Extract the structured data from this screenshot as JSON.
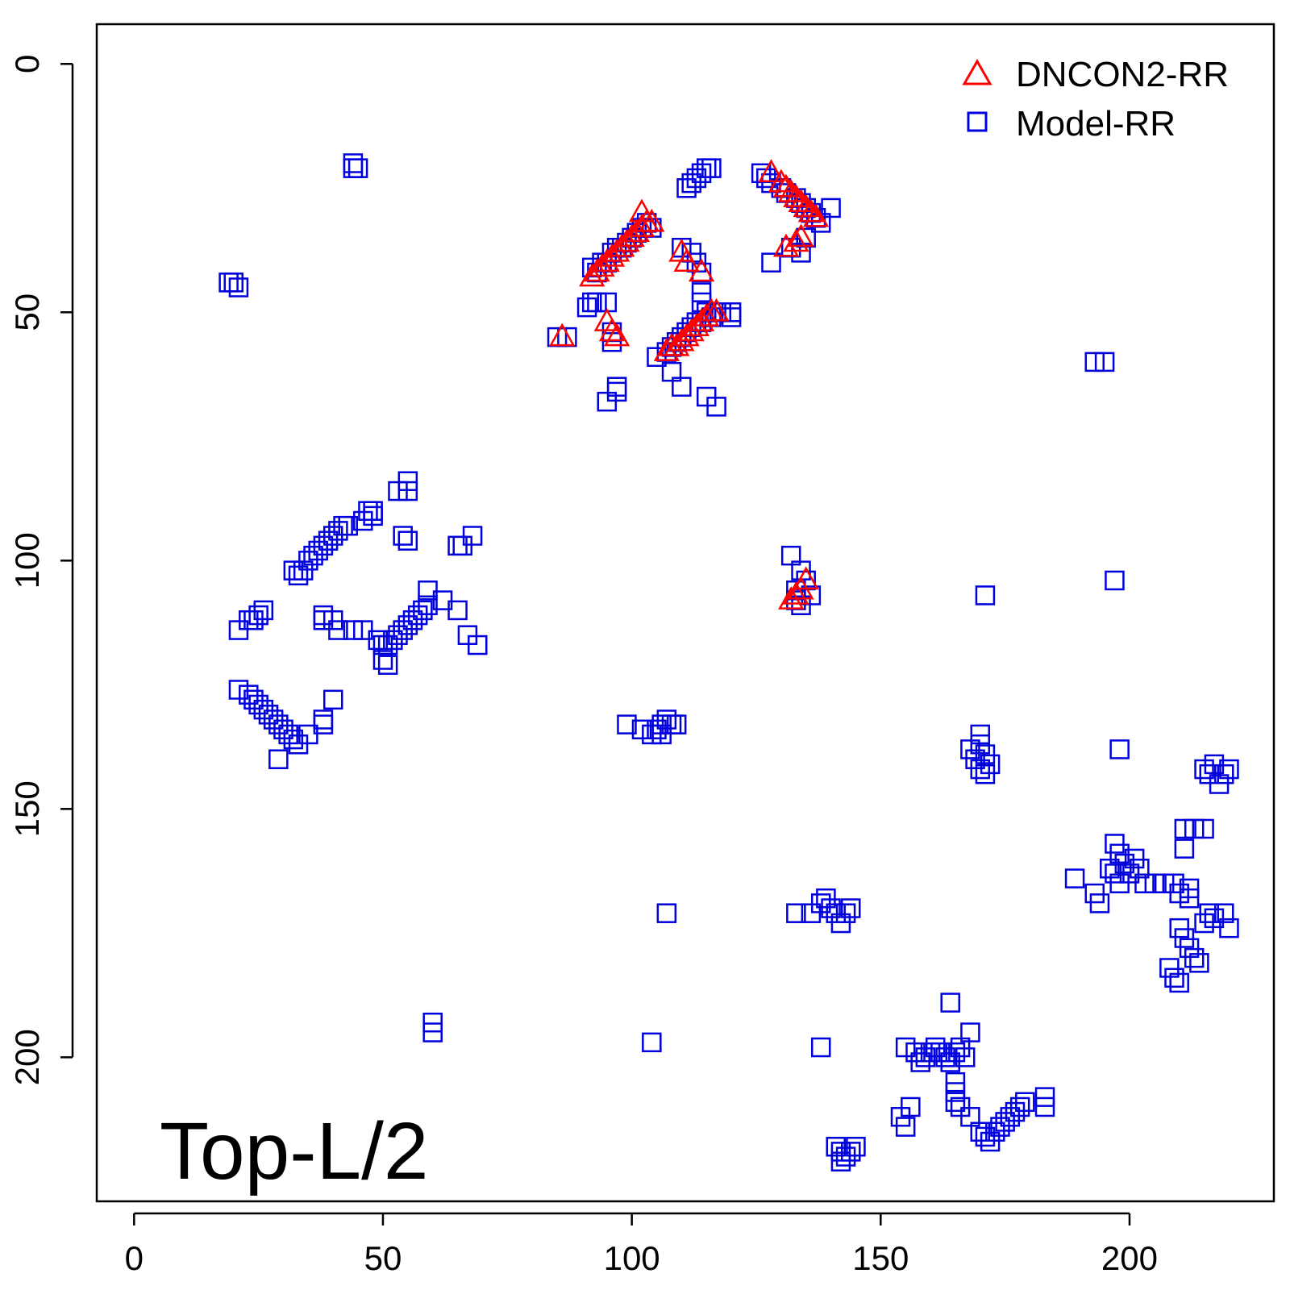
{
  "chart_data": {
    "type": "scatter",
    "title": "",
    "xlabel": "",
    "ylabel": "",
    "xlim": [
      -7.5,
      229
    ],
    "ylim": [
      -8,
      229
    ],
    "y_inverted": true,
    "x_ticks": [
      0,
      50,
      100,
      150,
      200
    ],
    "y_ticks": [
      0,
      50,
      100,
      150,
      200
    ],
    "legend_position": "top-right",
    "annotation": "Top-L/2",
    "series": [
      {
        "name": "DNCON2-RR",
        "marker": "triangle",
        "color": "#ff0000",
        "points": [
          [
            86,
            55
          ],
          [
            95,
            52
          ],
          [
            96,
            54
          ],
          [
            97,
            55
          ],
          [
            92,
            43
          ],
          [
            93,
            42
          ],
          [
            94,
            41
          ],
          [
            95,
            40
          ],
          [
            96,
            39
          ],
          [
            97,
            38
          ],
          [
            98,
            37
          ],
          [
            99,
            36
          ],
          [
            100,
            35
          ],
          [
            101,
            34
          ],
          [
            102,
            33
          ],
          [
            102,
            30
          ],
          [
            103,
            32
          ],
          [
            104,
            32
          ],
          [
            110,
            38
          ],
          [
            111,
            40
          ],
          [
            114,
            42
          ],
          [
            107,
            58
          ],
          [
            108,
            57
          ],
          [
            109,
            57
          ],
          [
            110,
            56
          ],
          [
            111,
            55
          ],
          [
            112,
            54
          ],
          [
            113,
            53
          ],
          [
            114,
            52
          ],
          [
            115,
            51
          ],
          [
            116,
            50
          ],
          [
            117,
            50
          ],
          [
            128,
            22
          ],
          [
            130,
            24
          ],
          [
            131,
            25
          ],
          [
            132,
            26
          ],
          [
            133,
            27
          ],
          [
            134,
            28
          ],
          [
            135,
            29
          ],
          [
            136,
            30
          ],
          [
            137,
            31
          ],
          [
            131,
            37
          ],
          [
            133,
            36
          ],
          [
            134,
            35
          ],
          [
            132,
            108
          ],
          [
            133,
            107
          ],
          [
            134,
            106
          ],
          [
            135,
            104
          ]
        ]
      },
      {
        "name": "Model-RR",
        "marker": "square",
        "color": "#0000dd",
        "points": [
          [
            44,
            20
          ],
          [
            44,
            21
          ],
          [
            45,
            21
          ],
          [
            19,
            44
          ],
          [
            20,
            44
          ],
          [
            21,
            45
          ],
          [
            85,
            55
          ],
          [
            87,
            55
          ],
          [
            91,
            49
          ],
          [
            92,
            48
          ],
          [
            93,
            48
          ],
          [
            95,
            48
          ],
          [
            93,
            42
          ],
          [
            92,
            41
          ],
          [
            94,
            40
          ],
          [
            95,
            40
          ],
          [
            96,
            38
          ],
          [
            97,
            37
          ],
          [
            98,
            37
          ],
          [
            99,
            36
          ],
          [
            100,
            35
          ],
          [
            101,
            34
          ],
          [
            102,
            33
          ],
          [
            103,
            32
          ],
          [
            104,
            33
          ],
          [
            111,
            25
          ],
          [
            112,
            24
          ],
          [
            113,
            23
          ],
          [
            114,
            22
          ],
          [
            115,
            21
          ],
          [
            116,
            21
          ],
          [
            126,
            22
          ],
          [
            127,
            23
          ],
          [
            128,
            24
          ],
          [
            130,
            25
          ],
          [
            131,
            26
          ],
          [
            133,
            27
          ],
          [
            134,
            28
          ],
          [
            135,
            29
          ],
          [
            136,
            30
          ],
          [
            137,
            31
          ],
          [
            138,
            32
          ],
          [
            140,
            29
          ],
          [
            135,
            35
          ],
          [
            110,
            37
          ],
          [
            112,
            38
          ],
          [
            113,
            40
          ],
          [
            114,
            42
          ],
          [
            114,
            46
          ],
          [
            114,
            48
          ],
          [
            115,
            50
          ],
          [
            116,
            51
          ],
          [
            117,
            50
          ],
          [
            118,
            50
          ],
          [
            120,
            50
          ],
          [
            120,
            51
          ],
          [
            105,
            59
          ],
          [
            107,
            58
          ],
          [
            108,
            57
          ],
          [
            109,
            56
          ],
          [
            110,
            55
          ],
          [
            111,
            54
          ],
          [
            112,
            53
          ],
          [
            113,
            52
          ],
          [
            114,
            52
          ],
          [
            108,
            62
          ],
          [
            110,
            65
          ],
          [
            115,
            67
          ],
          [
            117,
            69
          ],
          [
            95,
            68
          ],
          [
            97,
            65
          ],
          [
            97,
            66
          ],
          [
            96,
            54
          ],
          [
            96,
            56
          ],
          [
            128,
            40
          ],
          [
            132,
            37
          ],
          [
            134,
            38
          ],
          [
            32,
            102
          ],
          [
            33,
            103
          ],
          [
            34,
            102
          ],
          [
            35,
            100
          ],
          [
            36,
            99
          ],
          [
            37,
            98
          ],
          [
            38,
            97
          ],
          [
            39,
            96
          ],
          [
            40,
            95
          ],
          [
            41,
            94
          ],
          [
            42,
            93
          ],
          [
            43,
            93
          ],
          [
            46,
            92
          ],
          [
            47,
            90
          ],
          [
            48,
            90
          ],
          [
            48,
            91
          ],
          [
            53,
            86
          ],
          [
            55,
            84
          ],
          [
            55,
            86
          ],
          [
            54,
            95
          ],
          [
            55,
            96
          ],
          [
            65,
            97
          ],
          [
            66,
            97
          ],
          [
            68,
            95
          ],
          [
            21,
            114
          ],
          [
            23,
            112
          ],
          [
            24,
            112
          ],
          [
            25,
            111
          ],
          [
            26,
            110
          ],
          [
            38,
            111
          ],
          [
            38,
            112
          ],
          [
            40,
            112
          ],
          [
            41,
            114
          ],
          [
            44,
            114
          ],
          [
            46,
            114
          ],
          [
            49,
            116
          ],
          [
            50,
            117
          ],
          [
            51,
            117
          ],
          [
            52,
            116
          ],
          [
            53,
            115
          ],
          [
            54,
            114
          ],
          [
            55,
            113
          ],
          [
            56,
            112
          ],
          [
            57,
            111
          ],
          [
            58,
            110
          ],
          [
            59,
            109
          ],
          [
            59,
            106
          ],
          [
            62,
            108
          ],
          [
            65,
            110
          ],
          [
            67,
            115
          ],
          [
            69,
            117
          ],
          [
            50,
            120
          ],
          [
            51,
            121
          ],
          [
            21,
            126
          ],
          [
            23,
            127
          ],
          [
            24,
            128
          ],
          [
            25,
            129
          ],
          [
            26,
            130
          ],
          [
            27,
            131
          ],
          [
            28,
            132
          ],
          [
            29,
            133
          ],
          [
            30,
            134
          ],
          [
            31,
            135
          ],
          [
            32,
            136
          ],
          [
            33,
            137
          ],
          [
            35,
            135
          ],
          [
            38,
            132
          ],
          [
            38,
            133
          ],
          [
            40,
            128
          ],
          [
            29,
            140
          ],
          [
            60,
            193
          ],
          [
            60,
            195
          ],
          [
            99,
            133
          ],
          [
            102,
            134
          ],
          [
            104,
            135
          ],
          [
            105,
            134
          ],
          [
            106,
            133
          ],
          [
            107,
            132
          ],
          [
            108,
            133
          ],
          [
            109,
            133
          ],
          [
            106,
            135
          ],
          [
            107,
            171
          ],
          [
            104,
            197
          ],
          [
            132,
            99
          ],
          [
            134,
            102
          ],
          [
            135,
            104
          ],
          [
            133,
            106
          ],
          [
            133,
            108
          ],
          [
            134,
            109
          ],
          [
            136,
            107
          ],
          [
            171,
            107
          ],
          [
            197,
            104
          ],
          [
            193,
            60
          ],
          [
            195,
            60
          ],
          [
            198,
            138
          ],
          [
            168,
            138
          ],
          [
            169,
            140
          ],
          [
            170,
            142
          ],
          [
            171,
            143
          ],
          [
            170,
            135
          ],
          [
            170,
            137
          ],
          [
            171,
            139
          ],
          [
            172,
            141
          ],
          [
            215,
            142
          ],
          [
            216,
            143
          ],
          [
            217,
            141
          ],
          [
            218,
            145
          ],
          [
            219,
            143
          ],
          [
            220,
            142
          ],
          [
            189,
            164
          ],
          [
            193,
            167
          ],
          [
            194,
            169
          ],
          [
            196,
            162
          ],
          [
            197,
            163
          ],
          [
            198,
            165
          ],
          [
            197,
            157
          ],
          [
            198,
            159
          ],
          [
            199,
            161
          ],
          [
            200,
            163
          ],
          [
            201,
            160
          ],
          [
            202,
            162
          ],
          [
            203,
            165
          ],
          [
            205,
            165
          ],
          [
            207,
            165
          ],
          [
            209,
            165
          ],
          [
            210,
            167
          ],
          [
            212,
            168
          ],
          [
            212,
            166
          ],
          [
            211,
            158
          ],
          [
            211,
            154
          ],
          [
            213,
            154
          ],
          [
            215,
            154
          ],
          [
            210,
            174
          ],
          [
            211,
            176
          ],
          [
            212,
            178
          ],
          [
            213,
            180
          ],
          [
            214,
            181
          ],
          [
            215,
            173
          ],
          [
            216,
            171
          ],
          [
            217,
            172
          ],
          [
            219,
            171
          ],
          [
            220,
            174
          ],
          [
            208,
            182
          ],
          [
            209,
            184
          ],
          [
            210,
            185
          ],
          [
            133,
            171
          ],
          [
            136,
            171
          ],
          [
            138,
            169
          ],
          [
            139,
            168
          ],
          [
            140,
            170
          ],
          [
            141,
            171
          ],
          [
            142,
            173
          ],
          [
            143,
            171
          ],
          [
            144,
            170
          ],
          [
            155,
            198
          ],
          [
            157,
            199
          ],
          [
            158,
            201
          ],
          [
            159,
            200
          ],
          [
            160,
            199
          ],
          [
            161,
            198
          ],
          [
            162,
            199
          ],
          [
            163,
            200
          ],
          [
            164,
            201
          ],
          [
            165,
            199
          ],
          [
            166,
            198
          ],
          [
            167,
            200
          ],
          [
            168,
            195
          ],
          [
            164,
            189
          ],
          [
            165,
            205
          ],
          [
            165,
            207
          ],
          [
            165,
            209
          ],
          [
            138,
            198
          ],
          [
            154,
            212
          ],
          [
            155,
            214
          ],
          [
            156,
            210
          ],
          [
            166,
            210
          ],
          [
            168,
            212
          ],
          [
            170,
            215
          ],
          [
            171,
            216
          ],
          [
            172,
            217
          ],
          [
            173,
            215
          ],
          [
            174,
            214
          ],
          [
            175,
            213
          ],
          [
            176,
            212
          ],
          [
            177,
            211
          ],
          [
            178,
            210
          ],
          [
            179,
            209
          ],
          [
            183,
            208
          ],
          [
            183,
            210
          ],
          [
            141,
            218
          ],
          [
            142,
            219
          ],
          [
            143,
            220
          ],
          [
            144,
            219
          ],
          [
            145,
            218
          ],
          [
            142,
            221
          ]
        ]
      }
    ]
  }
}
